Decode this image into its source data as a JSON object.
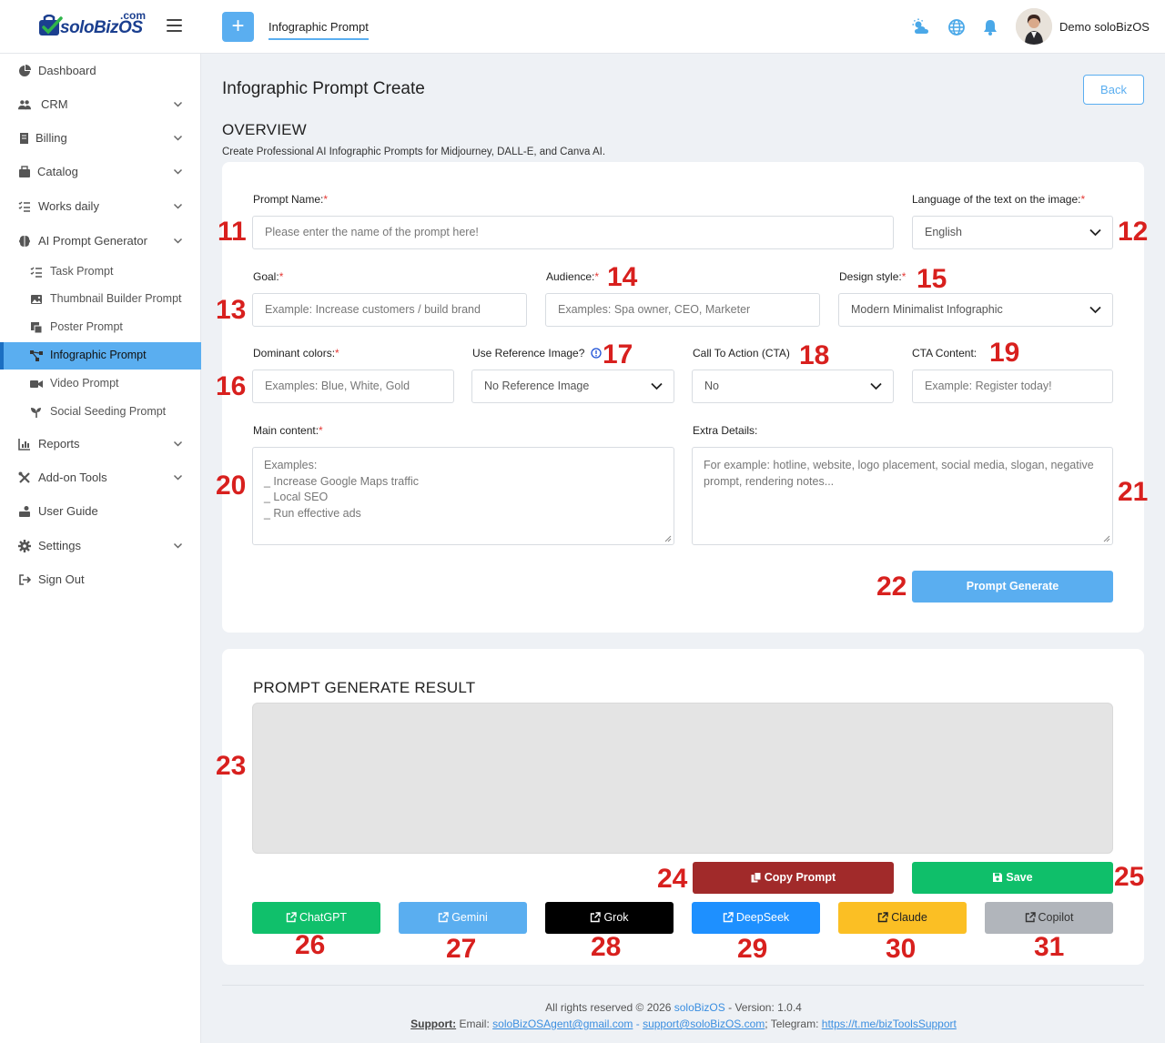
{
  "header": {
    "logo_com": ".com",
    "logo_text": "soloBizOS",
    "tab_label": "Infographic Prompt",
    "user_name": "Demo soloBizOS",
    "accent": "#5aaef0"
  },
  "sidebar": {
    "items": [
      {
        "label": "Dashboard",
        "icon": "dashboard-icon"
      },
      {
        "label": "CRM",
        "icon": "users-icon"
      },
      {
        "label": "Billing",
        "icon": "billing-icon"
      },
      {
        "label": "Catalog",
        "icon": "catalog-icon"
      },
      {
        "label": "Works daily",
        "icon": "tasks-icon"
      },
      {
        "label": "AI Prompt Generator",
        "icon": "brain-icon"
      },
      {
        "label": "Reports",
        "icon": "chart-icon"
      },
      {
        "label": "Add-on Tools",
        "icon": "tools-icon"
      },
      {
        "label": "User Guide",
        "icon": "guide-icon"
      },
      {
        "label": "Settings",
        "icon": "gear-icon"
      },
      {
        "label": "Sign Out",
        "icon": "sign-out-icon"
      }
    ],
    "sub_items": [
      {
        "label": "Task Prompt",
        "icon": "list-icon"
      },
      {
        "label": "Thumbnail Builder Prompt",
        "icon": "image-icon"
      },
      {
        "label": "Poster Prompt",
        "icon": "poster-icon"
      },
      {
        "label": "Infographic Prompt",
        "icon": "nodes-icon"
      },
      {
        "label": "Video Prompt",
        "icon": "video-icon"
      },
      {
        "label": "Social Seeding Prompt",
        "icon": "seedling-icon"
      }
    ]
  },
  "page": {
    "title": "Infographic Prompt Create",
    "back_label": "Back",
    "overview_title": "OVERVIEW",
    "overview_desc": "Create Professional AI Infographic Prompts for Midjourney, DALL-E, and Canva AI."
  },
  "form": {
    "prompt_name": {
      "label": "Prompt Name:",
      "required": "*",
      "placeholder": "Please enter the name of the prompt here!"
    },
    "language": {
      "label": "Language of the text on the image:",
      "required": "*",
      "value": "English"
    },
    "goal": {
      "label": "Goal:",
      "required": "*",
      "placeholder": "Example: Increase customers / build brand"
    },
    "audience": {
      "label": "Audience:",
      "required": "*",
      "placeholder": "Examples: Spa owner, CEO, Marketer"
    },
    "design_style": {
      "label": "Design style:",
      "required": "*",
      "value": "Modern Minimalist Infographic"
    },
    "colors": {
      "label": "Dominant colors:",
      "required": "*",
      "placeholder": "Examples: Blue, White, Gold"
    },
    "reference": {
      "label": "Use Reference Image?",
      "value": "No Reference Image"
    },
    "cta": {
      "label": "Call To Action (CTA)",
      "value": "No"
    },
    "cta_content": {
      "label": "CTA Content:",
      "placeholder": "Example: Register today!"
    },
    "main_content": {
      "label": "Main content:",
      "required": "*",
      "placeholder_lines": [
        "Examples:",
        "_ Increase Google Maps traffic",
        "_ Local SEO",
        "_ Run effective ads"
      ]
    },
    "extra": {
      "label": "Extra Details:",
      "placeholder": "For example: hotline, website, logo placement, social media, slogan, negative prompt, rendering notes..."
    },
    "generate_label": "Prompt Generate"
  },
  "result": {
    "title": "PROMPT GENERATE RESULT",
    "copy_label": "Copy Prompt",
    "save_label": "Save",
    "ai_buttons": [
      {
        "label": "ChatGPT",
        "color": "#10c06b"
      },
      {
        "label": "Gemini",
        "color": "#5aaef0"
      },
      {
        "label": "Grok",
        "color": "#000000"
      },
      {
        "label": "DeepSeek",
        "color": "#1e90ff"
      },
      {
        "label": "Claude",
        "color": "#fbbf24"
      },
      {
        "label": "Copilot",
        "color": "#b1b5bb"
      }
    ]
  },
  "annotations": [
    "11",
    "12",
    "13",
    "14",
    "15",
    "16",
    "17",
    "18",
    "19",
    "20",
    "21",
    "22",
    "23",
    "24",
    "25",
    "26",
    "27",
    "28",
    "29",
    "30",
    "31"
  ],
  "footer": {
    "rights_prefix": "All rights reserved © 2026 ",
    "brand": "soloBizOS",
    "version": " - Version: 1.0.4",
    "support_label": "Support:",
    "email_prefix": " Email: ",
    "email1": "soloBizOSAgent@gmail.com",
    "sep": " - ",
    "email2": "support@soloBizOS.com",
    "telegram_prefix": "; Telegram: ",
    "telegram": "https://t.me/bizToolsSupport"
  }
}
